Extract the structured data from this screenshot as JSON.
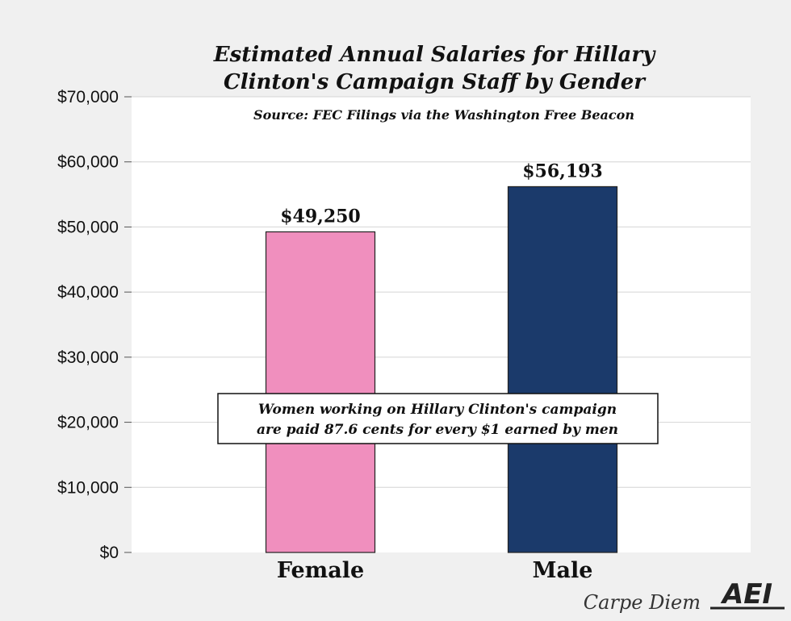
{
  "chart_data": {
    "type": "bar",
    "title_lines": [
      "Estimated Annual Salaries for Hillary",
      "Clinton's Campaign Staff by Gender"
    ],
    "subtitle": "Source: FEC Filings via the Washington Free Beacon",
    "categories": [
      "Female",
      "Male"
    ],
    "values": [
      49250,
      56193
    ],
    "data_labels": [
      "$49,250",
      "$56,193"
    ],
    "colors": [
      "#f08fbe",
      "#1b3a6b"
    ],
    "ylim": [
      0,
      70000
    ],
    "yticks": [
      0,
      10000,
      20000,
      30000,
      40000,
      50000,
      60000,
      70000
    ],
    "ytick_labels": [
      "$0",
      "$10,000",
      "$20,000",
      "$30,000",
      "$40,000",
      "$50,000",
      "$60,000",
      "$70,000"
    ],
    "grid": true,
    "annotation_lines": [
      "Women working on Hillary Clinton's campaign",
      "are paid 87.6 cents for every $1 earned by men"
    ]
  },
  "credit": "Carpe Diem",
  "logo": "AEI"
}
